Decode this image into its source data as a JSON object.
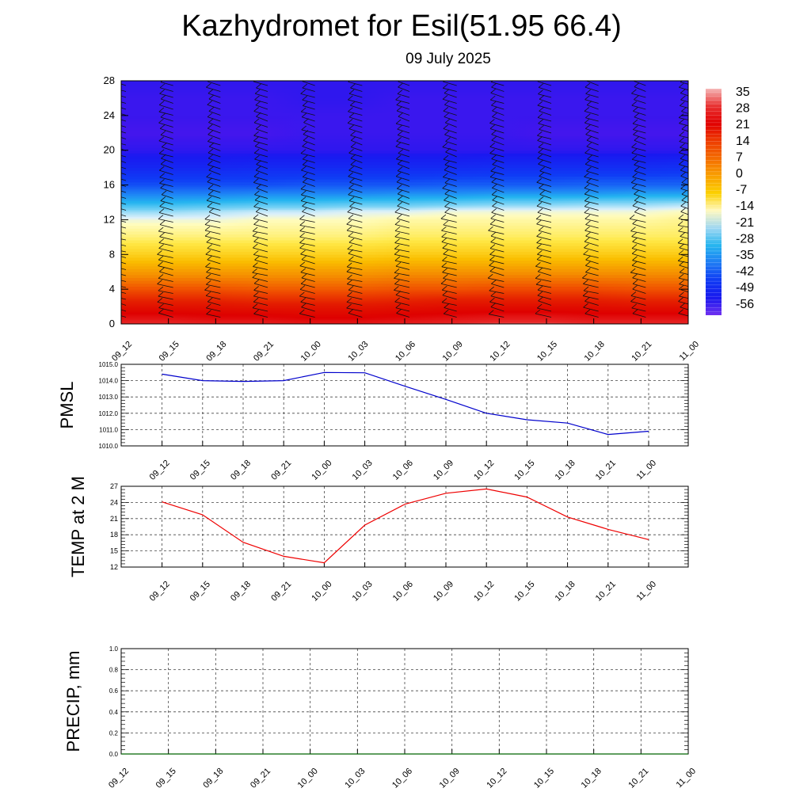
{
  "title": "Kazhydromet for Esil(51.95 66.4)",
  "subtitle": "09 July 2025",
  "colorbar": {
    "labels": [
      "35",
      "28",
      "21",
      "14",
      "7",
      "0",
      "-7",
      "-14",
      "-21",
      "-28",
      "-35",
      "-42",
      "-49",
      "-56"
    ],
    "colors": [
      "#f5b5b5",
      "#e83030",
      "#e10000",
      "#ee3c00",
      "#f46c00",
      "#f9a000",
      "#fcd000",
      "#fff9c0",
      "#9fd7f2",
      "#25b5ef",
      "#1e7bf4",
      "#0f3bf4",
      "#1818ee",
      "#7030f0"
    ]
  },
  "chart_data": [
    {
      "type": "heatmap",
      "name": "vertical temperature and wind cross-section",
      "x": [
        "09_12",
        "09_15",
        "09_18",
        "09_21",
        "10_00",
        "10_03",
        "10_06",
        "10_09",
        "10_12",
        "10_15",
        "10_18",
        "10_21",
        "11_00"
      ],
      "ylim": [
        0,
        28
      ],
      "yticks": [
        0,
        4,
        8,
        12,
        16,
        20,
        24,
        28
      ],
      "value_range": [
        -60,
        35
      ],
      "levels": [
        0,
        1,
        2,
        3,
        4,
        6,
        8,
        10,
        12,
        13,
        14,
        15,
        16,
        18,
        20,
        22,
        24,
        26,
        28
      ],
      "values": [
        [
          33,
          33,
          32,
          32,
          31,
          31,
          32,
          33,
          34,
          34,
          33,
          33,
          33
        ],
        [
          29,
          29,
          28,
          28,
          27,
          27,
          28,
          29,
          30,
          30,
          29,
          29,
          29
        ],
        [
          24,
          24,
          24,
          23,
          23,
          23,
          24,
          25,
          25,
          25,
          25,
          24,
          24
        ],
        [
          19,
          19,
          19,
          18,
          18,
          18,
          19,
          20,
          20,
          20,
          20,
          19,
          19
        ],
        [
          14,
          14,
          14,
          13,
          13,
          13,
          14,
          14,
          15,
          15,
          15,
          14,
          14
        ],
        [
          5,
          5,
          5,
          5,
          5,
          5,
          6,
          6,
          6,
          6,
          6,
          6,
          6
        ],
        [
          -3,
          -3,
          -3,
          -3,
          -3,
          -3,
          -2,
          -2,
          -2,
          -2,
          -2,
          -2,
          -2
        ],
        [
          -9,
          -9,
          -9,
          -9,
          -9,
          -9,
          -8,
          -8,
          -8,
          -8,
          -8,
          -8,
          -8
        ],
        [
          -13,
          -13,
          -13,
          -12,
          -12,
          -12,
          -11,
          -11,
          -11,
          -11,
          -11,
          -11,
          -10
        ],
        [
          -17,
          -17,
          -16,
          -15,
          -15,
          -14,
          -14,
          -13,
          -13,
          -13,
          -13,
          -13,
          -12
        ],
        [
          -24,
          -24,
          -23,
          -22,
          -22,
          -21,
          -21,
          -20,
          -19,
          -19,
          -18,
          -18,
          -17
        ],
        [
          -30,
          -30,
          -30,
          -29,
          -29,
          -29,
          -28,
          -28,
          -27,
          -27,
          -27,
          -26,
          -26
        ],
        [
          -37,
          -37,
          -37,
          -37,
          -36,
          -36,
          -36,
          -35,
          -35,
          -35,
          -34,
          -34,
          -34
        ],
        [
          -46,
          -46,
          -46,
          -45,
          -45,
          -45,
          -45,
          -45,
          -44,
          -44,
          -44,
          -44,
          -43
        ],
        [
          -52,
          -52,
          -52,
          -52,
          -52,
          -52,
          -52,
          -52,
          -52,
          -52,
          -52,
          -52,
          -52
        ],
        [
          -54,
          -54,
          -54,
          -54,
          -53,
          -53,
          -53,
          -53,
          -53,
          -54,
          -54,
          -54,
          -54
        ],
        [
          -53,
          -53,
          -53,
          -53,
          -53,
          -53,
          -53,
          -53,
          -53,
          -53,
          -53,
          -53,
          -53
        ],
        [
          -53,
          -53,
          -53,
          -53,
          -52,
          -52,
          -53,
          -53,
          -53,
          -53,
          -53,
          -53,
          -53
        ],
        [
          -52,
          -52,
          -52,
          -52,
          -52,
          -52,
          -52,
          -52,
          -52,
          -52,
          -52,
          -52,
          -52
        ]
      ]
    },
    {
      "type": "line",
      "ylabel": "PMSL",
      "x": [
        "09_12",
        "09_15",
        "09_18",
        "09_21",
        "10_00",
        "10_03",
        "10_06",
        "10_09",
        "10_12",
        "10_15",
        "10_18",
        "10_21",
        "11_00"
      ],
      "series": [
        {
          "values": [
            1014.4,
            1014.0,
            1013.95,
            1014.0,
            1014.5,
            1014.48,
            1013.65,
            1012.85,
            1012.0,
            1011.6,
            1011.4,
            1010.7,
            1010.9
          ],
          "color": "#0000cc"
        }
      ],
      "ylim": [
        1010,
        1015
      ],
      "yticks": [
        1010.0,
        1011.0,
        1012.0,
        1013.0,
        1014.0,
        1015.0
      ],
      "ytick_labels": [
        "1010.0",
        "1011.0",
        "1012.0",
        "1013.0",
        "1014.0",
        "1015.0"
      ]
    },
    {
      "type": "line",
      "ylabel": "TEMP at 2 M",
      "x": [
        "09_12",
        "09_15",
        "09_18",
        "09_21",
        "10_00",
        "10_03",
        "10_06",
        "10_09",
        "10_12",
        "10_15",
        "10_18",
        "10_21",
        "11_00"
      ],
      "series": [
        {
          "values": [
            24.1,
            21.7,
            16.6,
            14.0,
            12.8,
            19.8,
            23.7,
            25.7,
            26.5,
            25.0,
            21.3,
            19.0,
            17.1
          ],
          "color": "#ee0000"
        }
      ],
      "ylim": [
        12,
        27
      ],
      "yticks": [
        12,
        15,
        18,
        21,
        24,
        27
      ],
      "ytick_labels": [
        "12",
        "15",
        "18",
        "21",
        "24",
        "27"
      ]
    },
    {
      "type": "line",
      "ylabel": "PRECIP, mm",
      "x": [
        "09_12",
        "09_15",
        "09_18",
        "09_21",
        "10_00",
        "10_03",
        "10_06",
        "10_09",
        "10_12",
        "10_15",
        "10_18",
        "10_21",
        "11_00"
      ],
      "series": [
        {
          "values": [
            0,
            0,
            0,
            0,
            0,
            0,
            0,
            0,
            0,
            0,
            0,
            0,
            0
          ],
          "color": "#006400"
        }
      ],
      "ylim": [
        0,
        1
      ],
      "yticks": [
        0.0,
        0.2,
        0.4,
        0.6,
        0.8,
        1.0
      ],
      "ytick_labels": [
        "0.0",
        "0.2",
        "0.4",
        "0.6",
        "0.8",
        "1.0"
      ]
    }
  ]
}
